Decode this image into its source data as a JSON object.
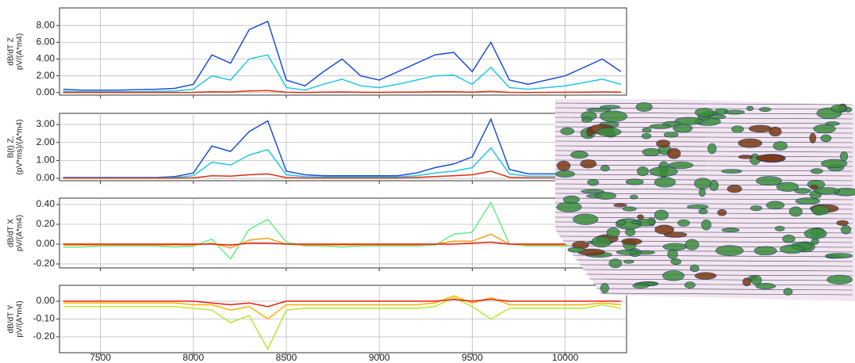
{
  "chart_data": [
    {
      "type": "line",
      "ylabel": [
        "dB/dT Z",
        "pV/(A*m4)"
      ],
      "x": [
        7300,
        7400,
        7500,
        7600,
        7700,
        7800,
        7900,
        8000,
        8100,
        8200,
        8300,
        8400,
        8500,
        8600,
        8700,
        8800,
        8900,
        9000,
        9100,
        9200,
        9300,
        9400,
        9500,
        9600,
        9700,
        9800,
        9900,
        10000,
        10100,
        10200,
        10300
      ],
      "xlim": [
        7280,
        10330
      ],
      "xticks": [
        7500,
        8000,
        8500,
        9000,
        9500,
        10000
      ],
      "ylim": [
        -0.3,
        10.1
      ],
      "yticks": [
        {
          "value": 0,
          "label": "0.00"
        },
        {
          "value": 2,
          "label": "2.00"
        },
        {
          "value": 4,
          "label": "4.00"
        },
        {
          "value": 6,
          "label": "6.00"
        },
        {
          "value": 8,
          "label": "8.00"
        }
      ],
      "grid": true,
      "series": [
        {
          "color": "#1f4fd8",
          "values": [
            0.4,
            0.3,
            0.3,
            0.3,
            0.35,
            0.4,
            0.5,
            1.0,
            4.5,
            3.5,
            7.5,
            8.5,
            1.5,
            0.8,
            2.5,
            4.0,
            2.0,
            1.5,
            2.5,
            3.5,
            4.5,
            4.8,
            2.5,
            6.0,
            1.5,
            1.0,
            1.5,
            2.0,
            3.0,
            4.0,
            2.5
          ]
        },
        {
          "color": "#22c8e8",
          "values": [
            0.15,
            0.1,
            0.1,
            0.1,
            0.1,
            0.15,
            0.2,
            0.4,
            2.0,
            1.5,
            4.0,
            4.5,
            0.6,
            0.3,
            1.0,
            1.6,
            0.8,
            0.6,
            1.0,
            1.5,
            2.0,
            2.1,
            1.0,
            3.0,
            0.6,
            0.4,
            0.6,
            0.8,
            1.2,
            1.6,
            1.0
          ]
        },
        {
          "color": "#e03010",
          "values": [
            0.02,
            0.02,
            0.02,
            0.02,
            0.02,
            0.02,
            0.02,
            0.03,
            0.1,
            0.08,
            0.2,
            0.25,
            0.04,
            0.02,
            0.05,
            0.08,
            0.04,
            0.03,
            0.05,
            0.07,
            0.1,
            0.1,
            0.05,
            0.15,
            0.03,
            0.02,
            0.03,
            0.04,
            0.06,
            0.08,
            0.05
          ]
        }
      ]
    },
    {
      "type": "line",
      "ylabel": [
        "B(t) Z,",
        "(pV*ms)/(A*m4)"
      ],
      "x": [
        7300,
        7400,
        7500,
        7600,
        7700,
        7800,
        7900,
        8000,
        8100,
        8200,
        8300,
        8400,
        8500,
        8600,
        8700,
        8800,
        8900,
        9000,
        9100,
        9200,
        9300,
        9400,
        9500,
        9600,
        9700,
        9800,
        9900,
        10000,
        10100,
        10200,
        10300
      ],
      "xlim": [
        7280,
        10330
      ],
      "xticks": [
        7500,
        8000,
        8500,
        9000,
        9500,
        10000
      ],
      "ylim": [
        -0.13,
        3.62
      ],
      "yticks": [
        {
          "value": 0,
          "label": "0.00"
        },
        {
          "value": 1,
          "label": "1.00"
        },
        {
          "value": 2,
          "label": "2.00"
        },
        {
          "value": 3,
          "label": "3.00"
        }
      ],
      "grid": true,
      "series": [
        {
          "color": "#1f4fd8",
          "values": [
            0.05,
            0.05,
            0.05,
            0.05,
            0.05,
            0.05,
            0.1,
            0.3,
            1.8,
            1.5,
            2.6,
            3.2,
            0.4,
            0.2,
            0.15,
            0.15,
            0.15,
            0.15,
            0.15,
            0.3,
            0.6,
            0.8,
            1.2,
            3.3,
            0.5,
            0.25,
            0.25,
            0.25,
            0.25,
            0.25,
            0.25
          ]
        },
        {
          "color": "#22c8e8",
          "values": [
            0.03,
            0.03,
            0.03,
            0.03,
            0.03,
            0.03,
            0.05,
            0.15,
            0.9,
            0.75,
            1.3,
            1.6,
            0.2,
            0.1,
            0.08,
            0.08,
            0.08,
            0.08,
            0.08,
            0.15,
            0.3,
            0.4,
            0.6,
            1.7,
            0.25,
            0.12,
            0.12,
            0.12,
            0.12,
            0.12,
            0.12
          ]
        },
        {
          "color": "#e03010",
          "values": [
            0.01,
            0.01,
            0.01,
            0.01,
            0.01,
            0.01,
            0.01,
            0.03,
            0.15,
            0.12,
            0.2,
            0.25,
            0.04,
            0.02,
            0.02,
            0.02,
            0.02,
            0.02,
            0.02,
            0.05,
            0.1,
            0.15,
            0.2,
            0.4,
            0.06,
            0.03,
            0.03,
            0.03,
            0.03,
            0.03,
            0.03
          ]
        }
      ]
    },
    {
      "type": "line",
      "ylabel": [
        "dB/dT X",
        "pV/(A*m4)"
      ],
      "x": [
        7300,
        7400,
        7500,
        7600,
        7700,
        7800,
        7900,
        8000,
        8100,
        8200,
        8300,
        8400,
        8500,
        8600,
        8700,
        8800,
        8900,
        9000,
        9100,
        9200,
        9300,
        9400,
        9500,
        9600,
        9700,
        9800,
        9900,
        10000,
        10100,
        10200,
        10300
      ],
      "xlim": [
        7280,
        10330
      ],
      "xticks": [
        7500,
        8000,
        8500,
        9000,
        9500,
        10000
      ],
      "ylim": [
        -0.24,
        0.464
      ],
      "yticks": [
        {
          "value": -0.2,
          "label": "-0.20"
        },
        {
          "value": 0,
          "label": "0.00"
        },
        {
          "value": 0.2,
          "label": "0.20"
        },
        {
          "value": 0.4,
          "label": "0.40"
        }
      ],
      "grid": true,
      "series": [
        {
          "color": "#66ee88",
          "values": [
            -0.03,
            -0.03,
            -0.02,
            -0.02,
            -0.02,
            -0.02,
            -0.03,
            -0.02,
            0.05,
            -0.15,
            0.15,
            0.25,
            0.02,
            -0.02,
            -0.02,
            -0.03,
            -0.02,
            -0.02,
            -0.02,
            -0.02,
            -0.01,
            0.1,
            0.12,
            0.42,
            0.0,
            -0.02,
            -0.02,
            -0.02,
            -0.02,
            -0.02,
            -0.02
          ]
        },
        {
          "color": "#f0a020",
          "values": [
            -0.01,
            -0.01,
            -0.01,
            -0.01,
            -0.01,
            -0.01,
            -0.01,
            -0.01,
            0.01,
            -0.04,
            0.04,
            0.06,
            0.0,
            -0.01,
            -0.01,
            -0.01,
            -0.01,
            -0.01,
            -0.01,
            -0.01,
            0.0,
            0.03,
            0.03,
            0.1,
            0.0,
            -0.01,
            -0.01,
            -0.01,
            -0.01,
            -0.01,
            -0.01
          ]
        },
        {
          "color": "#e02010",
          "values": [
            0.0,
            0.0,
            0.0,
            0.0,
            0.0,
            0.0,
            0.0,
            0.0,
            0.0,
            -0.01,
            0.01,
            0.01,
            0.0,
            0.0,
            0.0,
            0.0,
            0.0,
            0.0,
            0.0,
            0.0,
            0.0,
            0.0,
            0.01,
            0.02,
            0.0,
            0.0,
            0.0,
            0.0,
            0.0,
            0.0,
            0.0
          ]
        }
      ]
    },
    {
      "type": "line",
      "ylabel": [
        "dB/dT Y",
        "pV/(A*m4)"
      ],
      "x": [
        7300,
        7400,
        7500,
        7600,
        7700,
        7800,
        7900,
        8000,
        8100,
        8200,
        8300,
        8400,
        8500,
        8600,
        8700,
        8800,
        8900,
        9000,
        9100,
        9200,
        9300,
        9400,
        9500,
        9600,
        9700,
        9800,
        9900,
        10000,
        10100,
        10200,
        10300
      ],
      "xlim": [
        7280,
        10330
      ],
      "xticks": [
        7500,
        8000,
        8500,
        9000,
        9500,
        10000
      ],
      "ylim": [
        -0.289,
        0.089
      ],
      "yticks": [
        {
          "value": -0.2,
          "label": "-0.20"
        },
        {
          "value": -0.1,
          "label": "-0.10"
        },
        {
          "value": 0,
          "label": "0.00"
        }
      ],
      "grid": true,
      "series": [
        {
          "color": "#b8e830",
          "values": [
            -0.03,
            -0.03,
            -0.03,
            -0.03,
            -0.03,
            -0.03,
            -0.03,
            -0.04,
            -0.05,
            -0.12,
            -0.08,
            -0.27,
            -0.05,
            -0.04,
            -0.04,
            -0.04,
            -0.04,
            -0.04,
            -0.04,
            -0.04,
            -0.03,
            0.02,
            -0.03,
            -0.1,
            -0.04,
            -0.04,
            -0.04,
            -0.04,
            -0.04,
            -0.02,
            -0.04
          ]
        },
        {
          "color": "#ffb000",
          "values": [
            -0.01,
            -0.01,
            -0.01,
            -0.01,
            -0.01,
            -0.01,
            -0.01,
            -0.02,
            -0.02,
            -0.05,
            -0.03,
            -0.1,
            -0.02,
            -0.02,
            -0.02,
            -0.02,
            -0.02,
            -0.02,
            -0.02,
            -0.02,
            -0.01,
            0.03,
            -0.01,
            0.02,
            -0.02,
            -0.02,
            -0.02,
            -0.02,
            -0.02,
            -0.01,
            -0.02
          ]
        },
        {
          "color": "#e82010",
          "values": [
            0.0,
            0.0,
            0.0,
            0.0,
            0.0,
            0.0,
            0.0,
            0.0,
            -0.01,
            -0.02,
            -0.01,
            -0.03,
            0.0,
            0.0,
            0.0,
            0.0,
            0.0,
            0.0,
            0.0,
            0.0,
            0.0,
            0.01,
            0.0,
            0.01,
            0.0,
            0.0,
            0.0,
            0.0,
            0.0,
            0.0,
            0.0
          ]
        }
      ]
    }
  ]
}
